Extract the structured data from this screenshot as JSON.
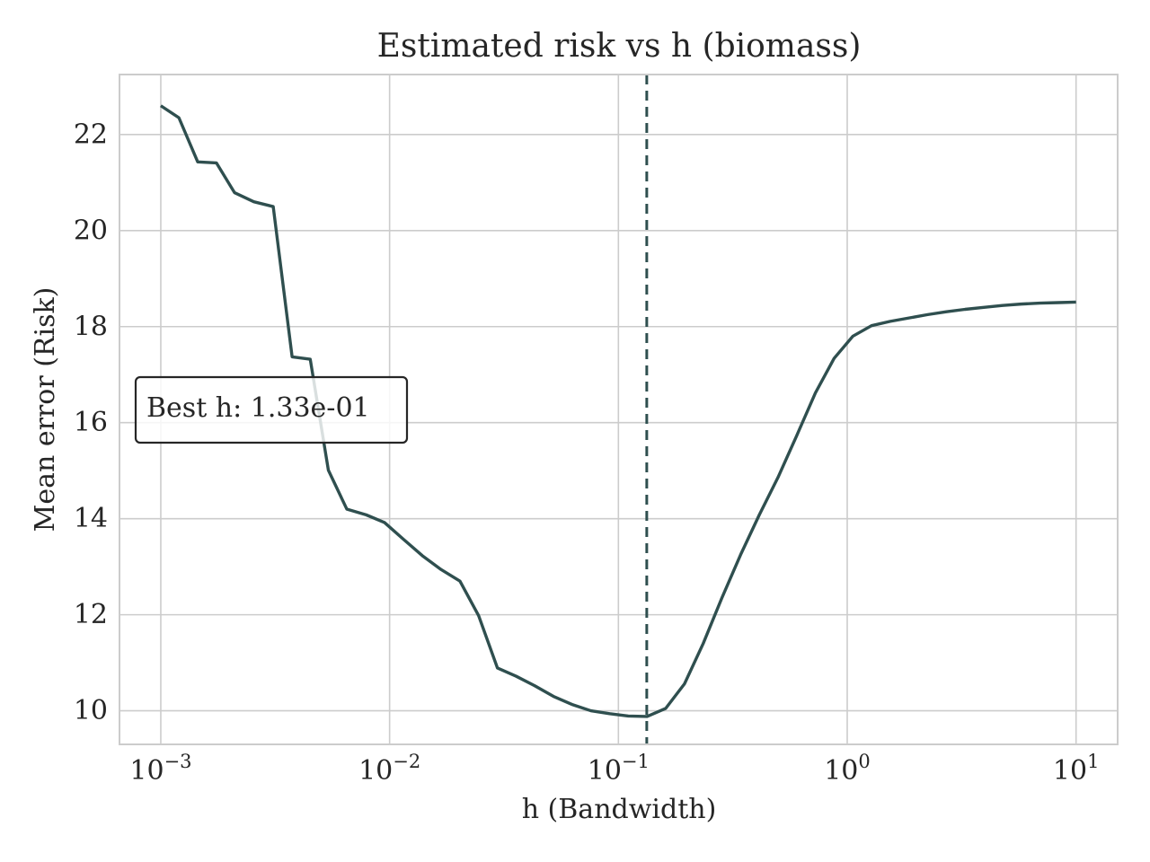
{
  "chart_data": {
    "type": "line",
    "title": "Estimated risk vs h (biomass)",
    "xlabel": "h (Bandwidth)",
    "ylabel": "Mean error (Risk)",
    "xscale": "log",
    "xlim": [
      0.00066,
      15.2
    ],
    "ylim": [
      9.3,
      23.25
    ],
    "x_ticks": [
      {
        "base": "10",
        "exp": "−3",
        "value": 0.001
      },
      {
        "base": "10",
        "exp": "−2",
        "value": 0.01
      },
      {
        "base": "10",
        "exp": "−1",
        "value": 0.1
      },
      {
        "base": "10",
        "exp": "0",
        "value": 1
      },
      {
        "base": "10",
        "exp": "1",
        "value": 10
      }
    ],
    "y_ticks": [
      "10",
      "12",
      "14",
      "16",
      "18",
      "20",
      "22"
    ],
    "grid": true,
    "line_color": "#2f4f4f",
    "series": [
      {
        "x": [
          0.001,
          0.0012,
          0.00145,
          0.00175,
          0.0021,
          0.00255,
          0.0031,
          0.00375,
          0.0045,
          0.0054,
          0.0065,
          0.0079,
          0.0095,
          0.0115,
          0.0139,
          0.0168,
          0.0203,
          0.0245,
          0.0296,
          0.0357,
          0.0431,
          0.052,
          0.0628,
          0.0758,
          0.0915,
          0.1105,
          0.1334,
          0.161,
          0.1944,
          0.2347,
          0.2833,
          0.342,
          0.4128,
          0.4983,
          0.6015,
          0.7261,
          0.8765,
          1.058,
          1.277,
          1.5418,
          1.861,
          2.2466,
          2.712,
          3.2738,
          3.9519,
          4.7706,
          5.7588,
          6.9518,
          8.3918,
          10.0
        ],
        "y": [
          22.6,
          22.35,
          21.43,
          21.41,
          20.79,
          20.6,
          20.5,
          17.37,
          17.32,
          15.01,
          14.2,
          14.08,
          13.92,
          13.57,
          13.23,
          12.94,
          12.7,
          11.98,
          10.89,
          10.72,
          10.52,
          10.3,
          10.13,
          10.0,
          9.94,
          9.89,
          9.88,
          10.05,
          10.56,
          11.4,
          12.35,
          13.25,
          14.08,
          14.86,
          15.73,
          16.62,
          17.34,
          17.8,
          18.02,
          18.11,
          18.18,
          18.25,
          18.31,
          18.36,
          18.4,
          18.44,
          18.47,
          18.49,
          18.5,
          18.51
        ]
      }
    ],
    "best_h": 0.133,
    "annotation": "Best h: 1.33e-01"
  }
}
